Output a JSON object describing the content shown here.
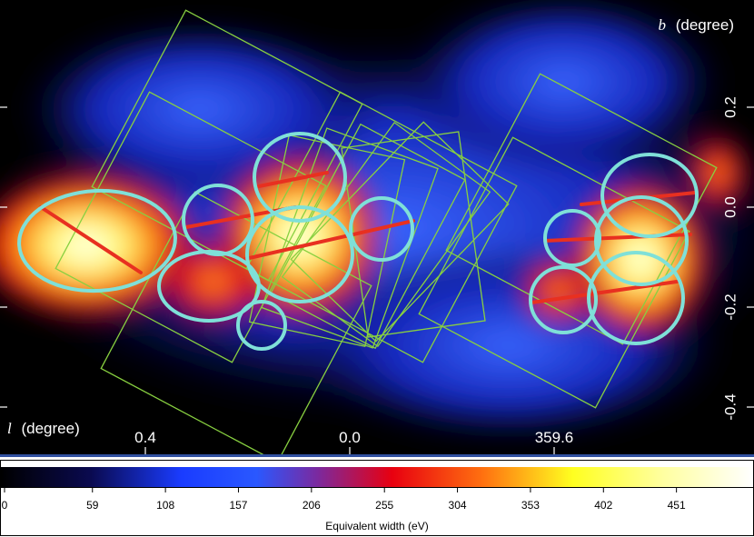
{
  "chart_data": {
    "type": "heatmap",
    "title": "",
    "xlabel": "l (degree)",
    "ylabel": "b (degree)",
    "x_axis": {
      "symbol": "l",
      "unit": "(degree)",
      "ticks": [
        "0.4",
        "0.0",
        "359.6"
      ],
      "direction": "decreasing-rightward"
    },
    "y_axis": {
      "symbol": "b",
      "unit": "(degree)",
      "ticks": [
        "0.2",
        "0.0",
        "-0.2",
        "-0.4"
      ]
    },
    "colorbar": {
      "label": "Equivalent width (eV)",
      "range": [
        0,
        500
      ],
      "ticks": [
        "0",
        "59",
        "108",
        "157",
        "206",
        "255",
        "304",
        "353",
        "402",
        "451"
      ],
      "colormap": "black-blue-red-yellow-white"
    },
    "regions": [
      {
        "shape": "ellipse",
        "l": 0.47,
        "b": -0.04,
        "color": "#7fe0d8"
      },
      {
        "shape": "circle",
        "l": 0.28,
        "b": -0.02,
        "color": "#7fe0d8"
      },
      {
        "shape": "ellipse",
        "l": 0.25,
        "b": -0.15,
        "color": "#7fe0d8"
      },
      {
        "shape": "circle",
        "l": 0.18,
        "b": -0.24,
        "color": "#7fe0d8"
      },
      {
        "shape": "ellipse",
        "l": 0.08,
        "b": 0.07,
        "color": "#7fe0d8"
      },
      {
        "shape": "ellipse",
        "l": 0.08,
        "b": -0.08,
        "color": "#7fe0d8"
      },
      {
        "shape": "circle",
        "l": -0.04,
        "b": -0.06,
        "color": "#7fe0d8"
      },
      {
        "shape": "circle",
        "l": -0.51,
        "b": -0.07,
        "color": "#7fe0d8"
      },
      {
        "shape": "circle",
        "l": -0.52,
        "b": -0.19,
        "color": "#7fe0d8"
      },
      {
        "shape": "ellipse",
        "l": -0.64,
        "b": 0.01,
        "color": "#7fe0d8"
      },
      {
        "shape": "ellipse",
        "l": -0.63,
        "b": -0.07,
        "color": "#7fe0d8"
      },
      {
        "shape": "ellipse",
        "l": -0.62,
        "b": -0.18,
        "color": "#7fe0d8"
      }
    ],
    "field_colors": {
      "regions": "#7fe0d8",
      "slits": "#e83020",
      "fov": "#88d040"
    }
  }
}
